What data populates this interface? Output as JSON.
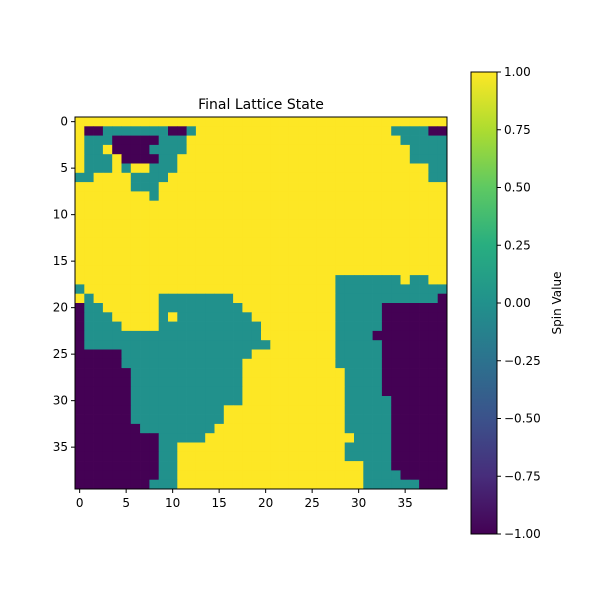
{
  "chart_data": {
    "type": "heatmap",
    "title": "Final Lattice State",
    "xlabel": "",
    "ylabel": "",
    "x_ticks": [
      0,
      5,
      10,
      15,
      20,
      25,
      30,
      35
    ],
    "y_ticks": [
      0,
      5,
      10,
      15,
      20,
      25,
      30,
      35
    ],
    "colorbar": {
      "label": "Spin Value",
      "range": [
        -1.0,
        1.0
      ],
      "ticks": [
        "1.00",
        "0.75",
        "0.50",
        "0.25",
        "0.00",
        "-0.25",
        "-0.50",
        "-0.75",
        "-1.00"
      ],
      "colormap": "viridis"
    },
    "legend_values": {
      "-1": "#440154",
      "0": "#21918c",
      "1": "#fde725"
    },
    "grid": false,
    "size": [
      40,
      40
    ],
    "cells": [
      "2222222222222222222222222222222222222222",
      "2001111111001222222222222222222222111100",
      "2111000001112222222222222222222222211111",
      "2112000011112222222222222222222222221111",
      "2111200001122222222222222222222222221111",
      "2111212211122222222222222222222222222211",
      "1122221111222222222222222222222222222211",
      "2222221112222222222222222222222222222222",
      "2222222212222222222222222222222222222222",
      "2222222222222222222222222222222222222222",
      "2222222222222222222222222222222222222222",
      "2222222222222222222222222222222222222222",
      "2222222222222222222222222222222222222222",
      "2222222222222222222222222222222222222222",
      "2222222222222222222222222222222222222222",
      "2222222222222222222222222222222222222222",
      "2222222222222222222222222222222222222222",
      "2222222222222222222222222222111111121122",
      "1222222222222222222222222222111111111111",
      "2122222221111111122222222222111111111110",
      "0112222221111111112222222222111110000000",
      "0111222221211111111222222222111110000000",
      "0111122221111111111122222222111110000000",
      "0111111111111111111122222222111100000000",
      "0111111111111111111112222222111110000000",
      "0000011111111111111222222222111110000000",
      "0000011111111111112222222222111110000000",
      "0000001111111111112222222222211110000000",
      "0000001111111111112222222222211110000000",
      "0000001111111111112222222222211110000000",
      "0000001111111111112222222222211111000000",
      "0000001111111111222222222222211111000000",
      "0000001111111111222222222222211111000000",
      "0000000111111112222222222222211111000000",
      "0000000001111122222222222222221111000000",
      "0000000001122222222222222222211111000000",
      "0000000001122222222222222222211111000000",
      "0000000001122222222222222222222111000000",
      "0000000001122222222222222222222111100000",
      "0000000011122222222222222222222111111000"
    ]
  }
}
